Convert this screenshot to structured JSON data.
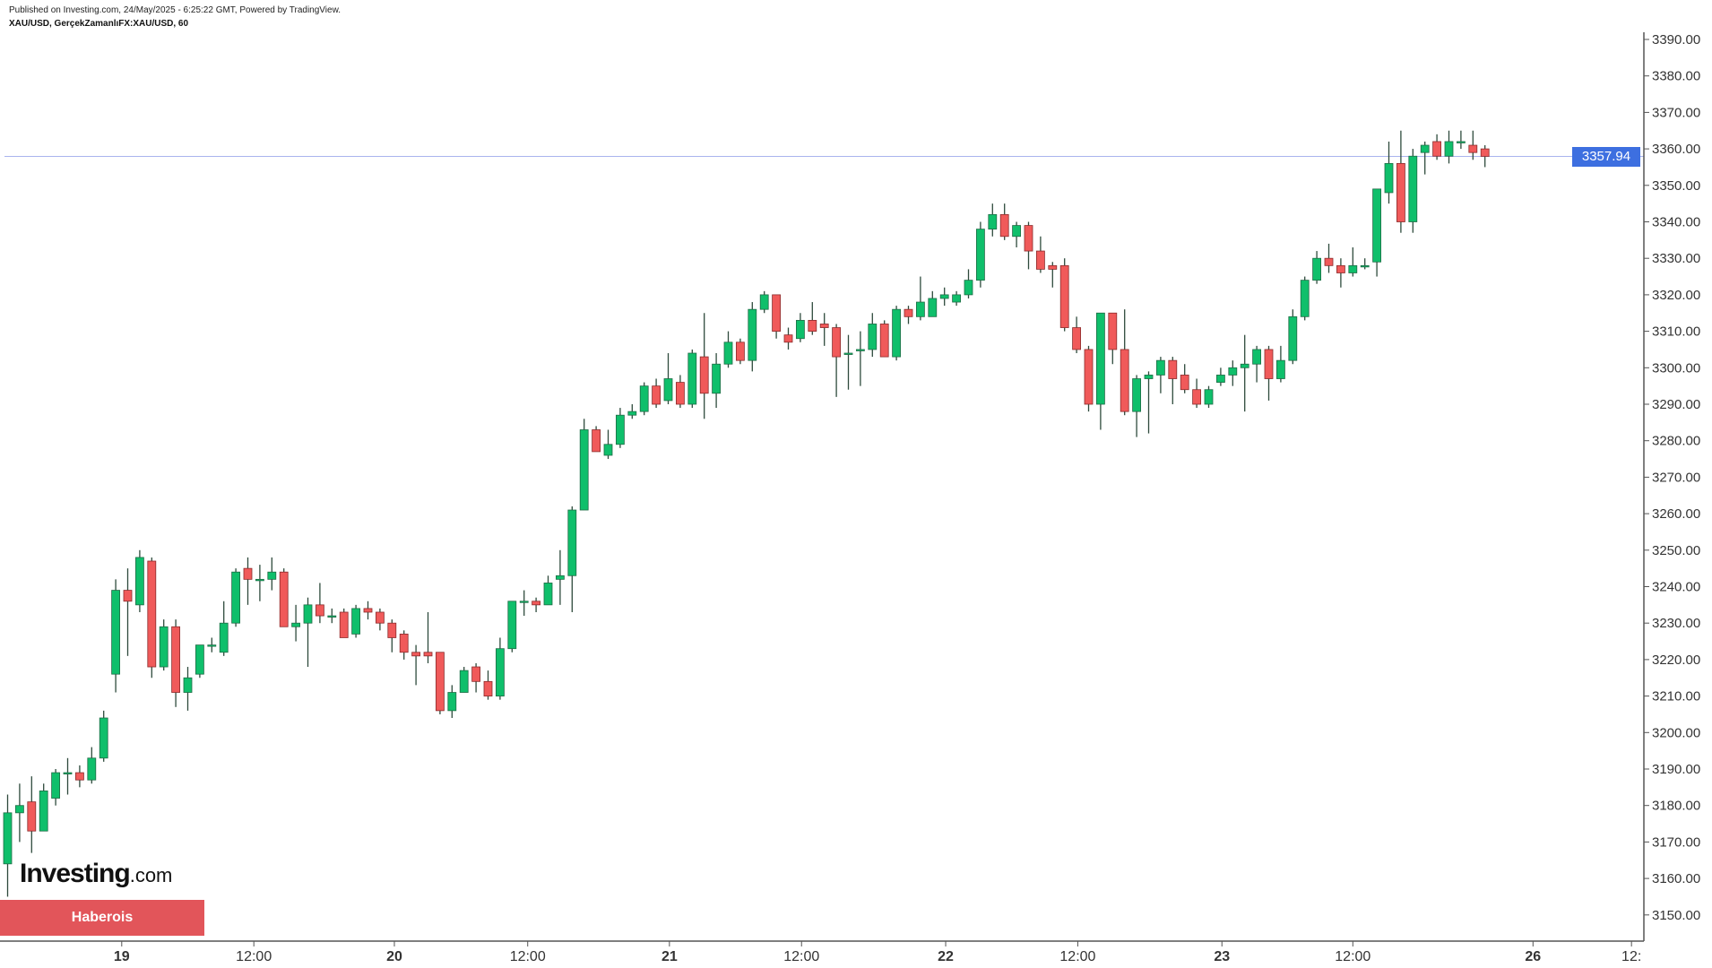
{
  "header": {
    "published": "Published on Investing.com, 24/May/2025 - 6:25:22 GMT, Powered by TradingView.",
    "symbol": "XAU/USD, GerçekZamanlıFX:XAU/USD, 60"
  },
  "logo": {
    "main": "Investing",
    "suffix": ".com"
  },
  "banner": "Haberois",
  "colors": {
    "up": "#0fbf6b",
    "down": "#f05a5a",
    "wick": "#2e4a3c",
    "last_price": "#3d6fe0"
  },
  "chart_data": {
    "type": "candlestick",
    "title": "XAU/USD, GerçekZamanlıFX:XAU/USD, 60",
    "interval_minutes": 60,
    "last_price": "3357.94",
    "ylim": [
      3143,
      3393
    ],
    "y_ticks": [
      "3390.00",
      "3380.00",
      "3370.00",
      "3360.00",
      "3350.00",
      "3340.00",
      "3330.00",
      "3320.00",
      "3310.00",
      "3300.00",
      "3290.00",
      "3280.00",
      "3270.00",
      "3260.00",
      "3250.00",
      "3240.00",
      "3230.00",
      "3220.00",
      "3210.00",
      "3200.00",
      "3190.00",
      "3180.00",
      "3170.00",
      "3160.00",
      "3150.00"
    ],
    "x_ticks": [
      {
        "label": "19",
        "candle": 9.5
      },
      {
        "label": "12:00",
        "candle": 20.5
      },
      {
        "label": "20",
        "candle": 32.2
      },
      {
        "label": "12:00",
        "candle": 43.3
      },
      {
        "label": "21",
        "candle": 55.1
      },
      {
        "label": "12:00",
        "candle": 66.1
      },
      {
        "label": "22",
        "candle": 78.1
      },
      {
        "label": "12:00",
        "candle": 89.1
      },
      {
        "label": "23",
        "candle": 101.1
      },
      {
        "label": "12:00",
        "candle": 112.0
      },
      {
        "label": "26",
        "candle": 127.0
      },
      {
        "label": "12:",
        "candle": 135.2
      }
    ],
    "candles_ohlc": [
      [
        3164,
        3183,
        3155,
        3178
      ],
      [
        3178,
        3186,
        3170,
        3180
      ],
      [
        3181,
        3188,
        3167,
        3173
      ],
      [
        3173,
        3186,
        3173,
        3184
      ],
      [
        3182,
        3190,
        3180,
        3189
      ],
      [
        3189,
        3193,
        3183,
        3189
      ],
      [
        3189,
        3191,
        3185,
        3187
      ],
      [
        3187,
        3196,
        3186,
        3193
      ],
      [
        3193,
        3206,
        3192,
        3204
      ],
      [
        3216,
        3242,
        3211,
        3239
      ],
      [
        3239,
        3245,
        3221,
        3236
      ],
      [
        3235,
        3250,
        3233,
        3248
      ],
      [
        3247,
        3248,
        3215,
        3218
      ],
      [
        3218,
        3231,
        3217,
        3229
      ],
      [
        3229,
        3231,
        3207,
        3211
      ],
      [
        3211,
        3218,
        3206,
        3215
      ],
      [
        3216,
        3224,
        3215,
        3224
      ],
      [
        3224,
        3226,
        3222,
        3224
      ],
      [
        3222,
        3236,
        3221,
        3230
      ],
      [
        3230,
        3245,
        3229,
        3244
      ],
      [
        3245,
        3248,
        3235,
        3242
      ],
      [
        3242,
        3246,
        3236,
        3242
      ],
      [
        3242,
        3248,
        3239,
        3244
      ],
      [
        3244,
        3245,
        3229,
        3229
      ],
      [
        3229,
        3235,
        3225,
        3230
      ],
      [
        3230,
        3237,
        3218,
        3235
      ],
      [
        3235,
        3241,
        3230,
        3232
      ],
      [
        3232,
        3234,
        3230,
        3232
      ],
      [
        3233,
        3234,
        3226,
        3226
      ],
      [
        3227,
        3235,
        3226,
        3234
      ],
      [
        3234,
        3236,
        3231,
        3233
      ],
      [
        3233,
        3234,
        3228,
        3230
      ],
      [
        3230,
        3231,
        3222,
        3226
      ],
      [
        3227,
        3228,
        3220,
        3222
      ],
      [
        3222,
        3224,
        3213,
        3221
      ],
      [
        3222,
        3233,
        3219,
        3221
      ],
      [
        3222,
        3222,
        3205,
        3206
      ],
      [
        3206,
        3213,
        3204,
        3211
      ],
      [
        3211,
        3218,
        3211,
        3217
      ],
      [
        3218,
        3219,
        3211,
        3214
      ],
      [
        3214,
        3217,
        3209,
        3210
      ],
      [
        3210,
        3226,
        3209,
        3223
      ],
      [
        3223,
        3236,
        3222,
        3236
      ],
      [
        3236,
        3239,
        3232,
        3236
      ],
      [
        3236,
        3237,
        3233,
        3235
      ],
      [
        3235,
        3243,
        3235,
        3241
      ],
      [
        3242,
        3250,
        3235,
        3243
      ],
      [
        3243,
        3262,
        3233,
        3261
      ],
      [
        3261,
        3286,
        3261,
        3283
      ],
      [
        3283,
        3284,
        3277,
        3277
      ],
      [
        3276,
        3283,
        3275,
        3279
      ],
      [
        3279,
        3289,
        3278,
        3287
      ],
      [
        3287,
        3290,
        3286,
        3288
      ],
      [
        3288,
        3296,
        3287,
        3295
      ],
      [
        3295,
        3297,
        3289,
        3290
      ],
      [
        3291,
        3304,
        3290,
        3297
      ],
      [
        3296,
        3298,
        3289,
        3290
      ],
      [
        3290,
        3305,
        3289,
        3304
      ],
      [
        3303,
        3315,
        3286,
        3293
      ],
      [
        3293,
        3304,
        3289,
        3301
      ],
      [
        3301,
        3310,
        3300,
        3307
      ],
      [
        3307,
        3308,
        3301,
        3302
      ],
      [
        3302,
        3318,
        3299,
        3316
      ],
      [
        3316,
        3321,
        3315,
        3320
      ],
      [
        3320,
        3320,
        3308,
        3310
      ],
      [
        3309,
        3311,
        3305,
        3307
      ],
      [
        3308,
        3315,
        3307,
        3313
      ],
      [
        3313,
        3318,
        3309,
        3310
      ],
      [
        3312,
        3315,
        3306,
        3311
      ],
      [
        3311,
        3312,
        3292,
        3303
      ],
      [
        3304,
        3309,
        3294,
        3304
      ],
      [
        3305,
        3310,
        3295,
        3305
      ],
      [
        3305,
        3315,
        3303,
        3312
      ],
      [
        3312,
        3313,
        3303,
        3303
      ],
      [
        3303,
        3317,
        3302,
        3316
      ],
      [
        3316,
        3317,
        3312,
        3314
      ],
      [
        3314,
        3325,
        3313,
        3318
      ],
      [
        3314,
        3321,
        3314,
        3319
      ],
      [
        3319,
        3322,
        3317,
        3320
      ],
      [
        3318,
        3321,
        3317,
        3320
      ],
      [
        3320,
        3327,
        3319,
        3324
      ],
      [
        3324,
        3340,
        3322,
        3338
      ],
      [
        3338,
        3345,
        3336,
        3342
      ],
      [
        3342,
        3345,
        3335,
        3336
      ],
      [
        3336,
        3340,
        3333,
        3339
      ],
      [
        3339,
        3340,
        3327,
        3332
      ],
      [
        3332,
        3336,
        3326,
        3327
      ],
      [
        3328,
        3329,
        3322,
        3327
      ],
      [
        3328,
        3330,
        3310,
        3311
      ],
      [
        3311,
        3314,
        3304,
        3305
      ],
      [
        3305,
        3306,
        3288,
        3290
      ],
      [
        3290,
        3315,
        3283,
        3315
      ],
      [
        3315,
        3315,
        3301,
        3305
      ],
      [
        3305,
        3316,
        3287,
        3288
      ],
      [
        3288,
        3298,
        3281,
        3297
      ],
      [
        3297,
        3299,
        3282,
        3298
      ],
      [
        3298,
        3303,
        3293,
        3302
      ],
      [
        3302,
        3303,
        3290,
        3297
      ],
      [
        3298,
        3301,
        3293,
        3294
      ],
      [
        3294,
        3297,
        3289,
        3290
      ],
      [
        3290,
        3295,
        3289,
        3294
      ],
      [
        3296,
        3300,
        3295,
        3298
      ],
      [
        3298,
        3302,
        3295,
        3300
      ],
      [
        3300,
        3309,
        3288,
        3301
      ],
      [
        3301,
        3306,
        3296,
        3305
      ],
      [
        3305,
        3306,
        3291,
        3297
      ],
      [
        3297,
        3306,
        3296,
        3302
      ],
      [
        3302,
        3316,
        3301,
        3314
      ],
      [
        3314,
        3325,
        3313,
        3324
      ],
      [
        3324,
        3332,
        3323,
        3330
      ],
      [
        3330,
        3334,
        3326,
        3328
      ],
      [
        3328,
        3330,
        3322,
        3326
      ],
      [
        3326,
        3333,
        3325,
        3328
      ],
      [
        3328,
        3330,
        3327,
        3328
      ],
      [
        3329,
        3349,
        3325,
        3349
      ],
      [
        3348,
        3362,
        3345,
        3356
      ],
      [
        3356,
        3365,
        3337,
        3340
      ],
      [
        3340,
        3360,
        3337,
        3358
      ],
      [
        3359,
        3362,
        3353,
        3361
      ],
      [
        3362,
        3364,
        3357,
        3358
      ],
      [
        3358,
        3365,
        3356,
        3362
      ],
      [
        3362,
        3365,
        3360,
        3362
      ],
      [
        3361,
        3365,
        3357,
        3359
      ],
      [
        3360,
        3361,
        3355,
        3357.94
      ]
    ]
  }
}
